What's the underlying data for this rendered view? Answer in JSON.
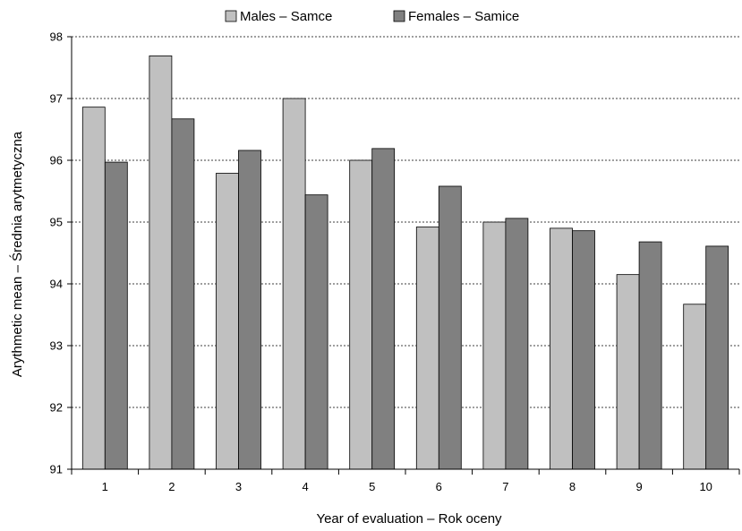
{
  "chart_data": {
    "type": "bar",
    "title": "",
    "xlabel": "Year of evaluation – Rok oceny",
    "ylabel": "Arythmetic mean – Średnia arytmetyczna",
    "categories": [
      "1",
      "2",
      "3",
      "4",
      "5",
      "6",
      "7",
      "8",
      "9",
      "10"
    ],
    "series": [
      {
        "name": "Males – Samce",
        "color": "#c0c0c0",
        "values": [
          96.86,
          97.69,
          95.79,
          97.0,
          96.0,
          94.92,
          95.0,
          94.9,
          94.15,
          93.67
        ]
      },
      {
        "name": "Females – Samice",
        "color": "#808080",
        "values": [
          95.97,
          96.67,
          96.16,
          95.44,
          96.19,
          95.58,
          95.06,
          94.86,
          94.68,
          94.61
        ]
      }
    ],
    "ylim": [
      91,
      98
    ],
    "yticks": [
      91,
      92,
      93,
      94,
      95,
      96,
      97,
      98
    ],
    "grid": "horizontal dashed",
    "legend_position": "top"
  }
}
